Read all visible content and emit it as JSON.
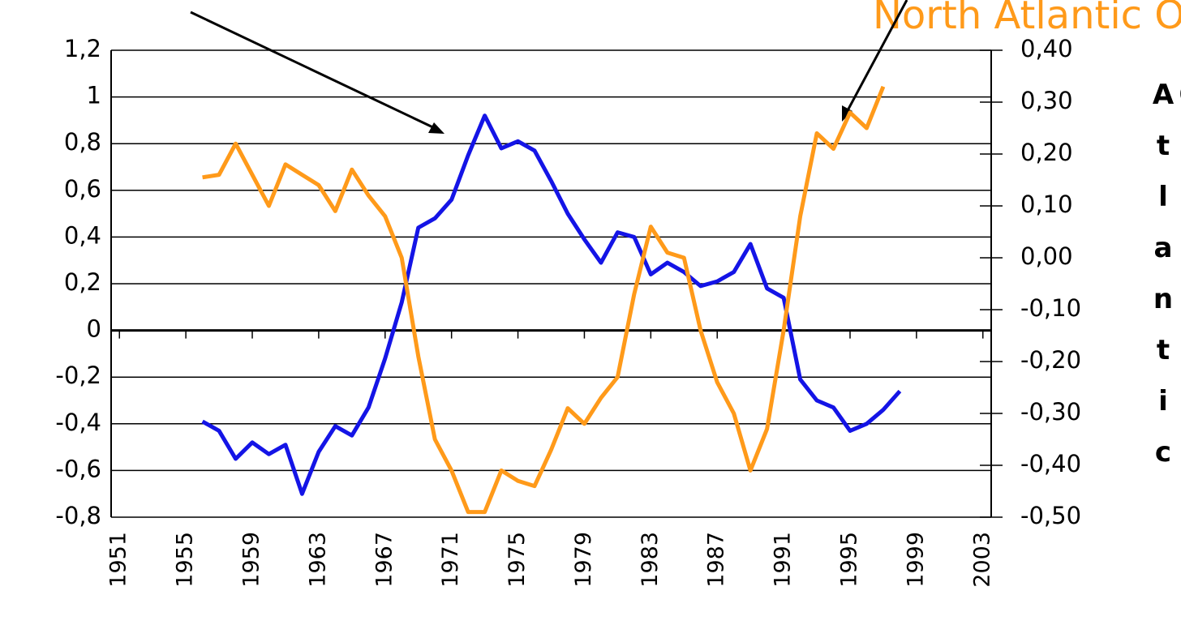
{
  "chart_data": {
    "type": "line",
    "annotations": [
      "North Atlantic Ocean",
      "OST Atlantic"
    ],
    "x": [
      1956,
      1957,
      1958,
      1959,
      1960,
      1961,
      1962,
      1963,
      1964,
      1965,
      1966,
      1967,
      1968,
      1969,
      1970,
      1971,
      1972,
      1973,
      1974,
      1975,
      1976,
      1977,
      1978,
      1979,
      1980,
      1981,
      1982,
      1983,
      1984,
      1985,
      1986,
      1987,
      1988,
      1989,
      1990,
      1991,
      1992,
      1993,
      1994,
      1995,
      1996,
      1997,
      1998
    ],
    "series": [
      {
        "color": "#1414e6",
        "axis": "y",
        "values": [
          -0.39,
          -0.43,
          -0.55,
          -0.48,
          -0.53,
          -0.49,
          -0.7,
          -0.52,
          -0.41,
          -0.45,
          -0.33,
          -0.12,
          0.12,
          0.44,
          0.48,
          0.56,
          0.75,
          0.92,
          0.78,
          0.81,
          0.77,
          0.64,
          0.5,
          0.39,
          0.29,
          0.42,
          0.4,
          0.24,
          0.29,
          0.25,
          0.19,
          0.21,
          0.25,
          0.37,
          0.18,
          0.14,
          -0.21,
          -0.3,
          -0.33,
          -0.43,
          -0.4,
          -0.34,
          -0.26
        ]
      },
      {
        "color": "#ff9a1a",
        "axis": "y2",
        "values": [
          0.155,
          0.16,
          0.22,
          0.16,
          0.1,
          0.18,
          0.16,
          0.14,
          0.09,
          0.17,
          0.12,
          0.08,
          0.0,
          -0.19,
          -0.35,
          -0.41,
          -0.49,
          -0.49,
          -0.41,
          -0.43,
          -0.44,
          -0.37,
          -0.29,
          -0.32,
          -0.27,
          -0.23,
          -0.07,
          0.06,
          0.01,
          0.0,
          -0.14,
          -0.24,
          -0.3,
          -0.41,
          -0.33,
          -0.14,
          0.08,
          0.24,
          0.21,
          0.28,
          0.25,
          0.33,
          null
        ]
      }
    ],
    "xlim": [
      1950.5,
      2003.5
    ],
    "xticks": [
      1951,
      1955,
      1959,
      1963,
      1967,
      1971,
      1975,
      1979,
      1983,
      1987,
      1991,
      1995,
      1999,
      2003
    ],
    "ylim": [
      -0.8,
      1.2
    ],
    "yticks": [
      {
        "value": -0.8,
        "label": "-0,8"
      },
      {
        "value": -0.6,
        "label": "-0,6"
      },
      {
        "value": -0.4,
        "label": "-0,4"
      },
      {
        "value": -0.2,
        "label": "-0,2"
      },
      0,
      {
        "value": 0.2,
        "label": "0,2"
      },
      {
        "value": 0.4,
        "label": "0,4"
      },
      {
        "value": 0.6,
        "label": "0,6"
      },
      {
        "value": 0.8,
        "label": "0,8"
      },
      1,
      {
        "value": 1.2,
        "label": "1,2"
      }
    ],
    "y2lim": [
      -0.5,
      0.4
    ],
    "y2ticks": [
      {
        "value": -0.5,
        "label": "-0,50"
      },
      {
        "value": -0.4,
        "label": "-0,40"
      },
      {
        "value": -0.3,
        "label": "-0,30"
      },
      {
        "value": -0.2,
        "label": "-0,20"
      },
      {
        "value": -0.1,
        "label": "-0,10"
      },
      {
        "value": 0.0,
        "label": "0,00"
      },
      {
        "value": 0.1,
        "label": "0,10"
      },
      {
        "value": 0.2,
        "label": "0,20"
      },
      {
        "value": 0.3,
        "label": "0,30"
      },
      {
        "value": 0.4,
        "label": "0,40"
      }
    ],
    "grid": true
  }
}
